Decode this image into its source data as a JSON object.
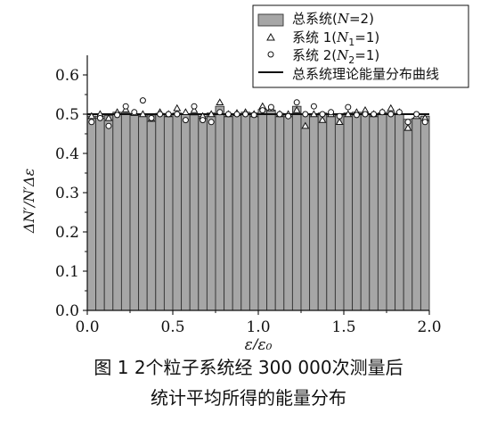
{
  "chart_data": {
    "type": "bar",
    "xlim": [
      0.0,
      2.0
    ],
    "ylim": [
      0.0,
      0.65
    ],
    "x_ticks": [
      0.0,
      0.5,
      1.0,
      1.5,
      2.0
    ],
    "x_tick_labels": [
      "0.0",
      "0.5",
      "1.0",
      "1.5",
      "2.0"
    ],
    "y_ticks": [
      0.0,
      0.1,
      0.2,
      0.3,
      0.4,
      0.5,
      0.6
    ],
    "y_tick_labels": [
      "0.0",
      "0.1",
      "0.2",
      "0.3",
      "0.4",
      "0.5",
      "0.6"
    ],
    "xlabel": "ε/ε₀",
    "ylabel": "ΔN′/N′Δε",
    "grid": false,
    "legend_position": "top-right",
    "bin_width": 0.05,
    "bins_x": [
      0.025,
      0.075,
      0.125,
      0.175,
      0.225,
      0.275,
      0.325,
      0.375,
      0.425,
      0.475,
      0.525,
      0.575,
      0.625,
      0.675,
      0.725,
      0.775,
      0.825,
      0.875,
      0.925,
      0.975,
      1.025,
      1.075,
      1.125,
      1.175,
      1.225,
      1.275,
      1.325,
      1.375,
      1.425,
      1.475,
      1.525,
      1.575,
      1.625,
      1.675,
      1.725,
      1.775,
      1.825,
      1.875,
      1.925,
      1.975
    ],
    "series": [
      {
        "name": "总系统(N=2)",
        "kind": "bar",
        "color": "#a6a6a6",
        "values": [
          0.495,
          0.49,
          0.497,
          0.505,
          0.503,
          0.5,
          0.498,
          0.496,
          0.502,
          0.5,
          0.503,
          0.5,
          0.498,
          0.495,
          0.503,
          0.52,
          0.5,
          0.498,
          0.505,
          0.503,
          0.512,
          0.51,
          0.502,
          0.5,
          0.52,
          0.5,
          0.498,
          0.503,
          0.5,
          0.498,
          0.503,
          0.505,
          0.5,
          0.498,
          0.503,
          0.505,
          0.5,
          0.487,
          0.49,
          0.495
        ]
      },
      {
        "name": "系统 1(N₁=1)",
        "kind": "triangle",
        "values": [
          0.495,
          0.5,
          0.49,
          0.505,
          0.512,
          0.503,
          0.5,
          0.488,
          0.505,
          0.5,
          0.515,
          0.505,
          0.51,
          0.495,
          0.5,
          0.53,
          0.5,
          0.503,
          0.505,
          0.5,
          0.52,
          0.515,
          0.5,
          0.5,
          0.51,
          0.47,
          0.5,
          0.485,
          0.5,
          0.48,
          0.5,
          0.505,
          0.51,
          0.5,
          0.505,
          0.515,
          0.505,
          0.465,
          0.495,
          0.49
        ]
      },
      {
        "name": "系统 2(N₂=1)",
        "kind": "circle",
        "values": [
          0.48,
          0.49,
          0.47,
          0.498,
          0.52,
          0.505,
          0.535,
          0.49,
          0.5,
          0.5,
          0.5,
          0.485,
          0.52,
          0.485,
          0.48,
          0.505,
          0.5,
          0.5,
          0.5,
          0.498,
          0.51,
          0.518,
          0.5,
          0.495,
          0.53,
          0.5,
          0.52,
          0.5,
          0.505,
          0.495,
          0.518,
          0.498,
          0.5,
          0.5,
          0.505,
          0.5,
          0.505,
          0.48,
          0.5,
          0.48
        ]
      },
      {
        "name": "总系统理论能量分布曲线",
        "kind": "line",
        "value": 0.5
      }
    ]
  },
  "legend": {
    "items": [
      {
        "prefix": "总系统(",
        "var": "N",
        "sub": "",
        "suffix": "=2)"
      },
      {
        "prefix": "系统 1(",
        "var": "N",
        "sub": "1",
        "suffix": "=1)"
      },
      {
        "prefix": "系统 2(",
        "var": "N",
        "sub": "2",
        "suffix": "=1)"
      },
      {
        "prefix": "总系统理论能量分布曲线",
        "var": "",
        "sub": "",
        "suffix": ""
      }
    ]
  },
  "caption": {
    "line1": "图 1   2个粒子系统经 300 000次测量后",
    "line2": "统计平均所得的能量分布"
  }
}
